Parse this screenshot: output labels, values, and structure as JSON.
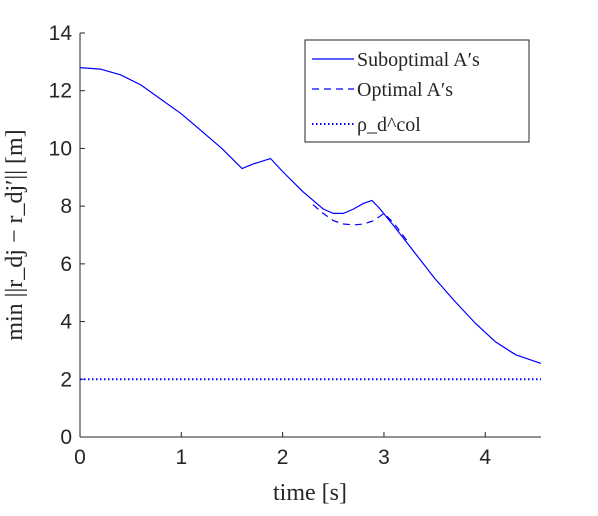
{
  "chart_data": {
    "type": "line",
    "xlabel": "time [s]",
    "ylabel": "min ||r_dj − r_dj′|| [m]",
    "xlim": [
      0,
      4.55
    ],
    "ylim": [
      0,
      14
    ],
    "xticks": [
      0,
      1,
      2,
      3,
      4
    ],
    "yticks": [
      0,
      2,
      4,
      6,
      8,
      10,
      12,
      14
    ],
    "grid": false,
    "legend_position": "top-right",
    "series": [
      {
        "name": "Suboptimal A′s",
        "style": "solid",
        "color": "#0000ff",
        "x": [
          0,
          0.2,
          0.4,
          0.6,
          0.8,
          1.0,
          1.2,
          1.4,
          1.6,
          1.7,
          1.88,
          2.0,
          2.2,
          2.4,
          2.5,
          2.6,
          2.7,
          2.8,
          2.88,
          2.95,
          3.1,
          3.3,
          3.5,
          3.7,
          3.9,
          4.1,
          4.3,
          4.55
        ],
        "y": [
          12.8,
          12.75,
          12.55,
          12.2,
          11.7,
          11.2,
          10.6,
          10.0,
          9.3,
          9.45,
          9.65,
          9.2,
          8.5,
          7.9,
          7.75,
          7.75,
          7.9,
          8.1,
          8.2,
          7.95,
          7.3,
          6.4,
          5.5,
          4.7,
          3.95,
          3.3,
          2.85,
          2.55
        ]
      },
      {
        "name": "Optimal A′s",
        "style": "dashed",
        "color": "#0000ff",
        "x": [
          2.3,
          2.4,
          2.5,
          2.6,
          2.7,
          2.8,
          2.9,
          3.0,
          3.1,
          3.25
        ],
        "y": [
          8.05,
          7.75,
          7.5,
          7.38,
          7.35,
          7.38,
          7.5,
          7.75,
          7.4,
          6.7
        ]
      },
      {
        "name": "ρ_d^col",
        "style": "dotted",
        "color": "#0000ff",
        "x": [
          0,
          4.55
        ],
        "y": [
          2,
          2
        ]
      }
    ]
  }
}
